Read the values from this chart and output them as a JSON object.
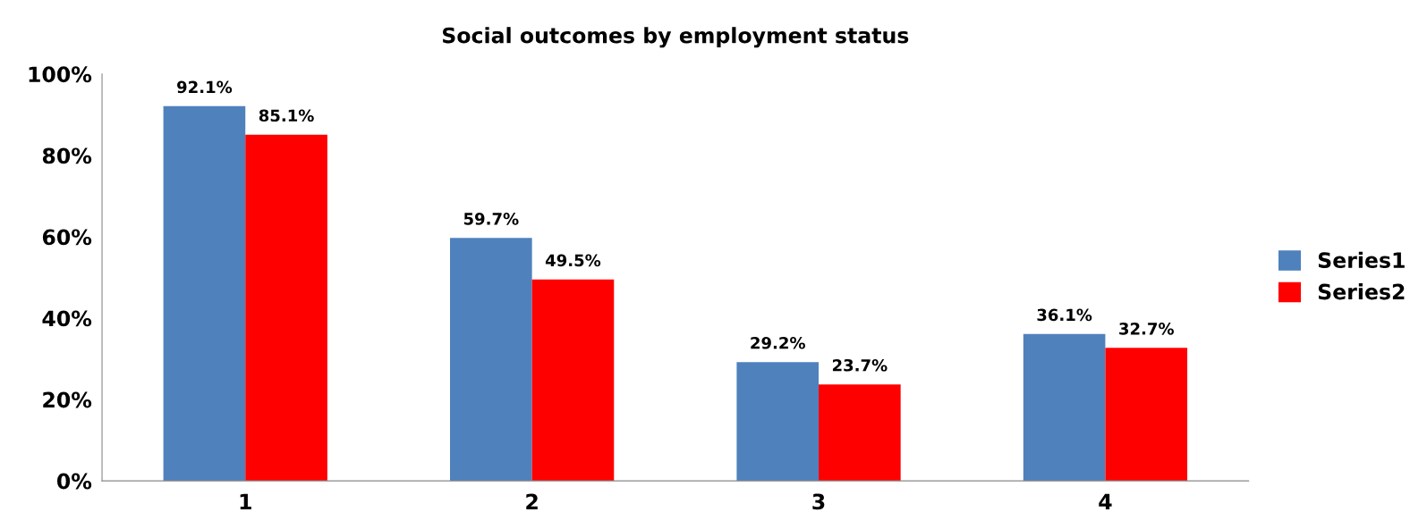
{
  "chart_data": {
    "type": "bar",
    "title": "Social outcomes by employment status",
    "categories": [
      "1",
      "2",
      "3",
      "4"
    ],
    "series": [
      {
        "name": "Series1",
        "color": "#4f81bd",
        "values": [
          92.1,
          59.7,
          29.2,
          36.1
        ],
        "value_labels": [
          "92.1%",
          "59.7%",
          "29.2%",
          "36.1%"
        ]
      },
      {
        "name": "Series2",
        "color": "#ff0000",
        "values": [
          85.1,
          49.5,
          23.7,
          32.7
        ],
        "value_labels": [
          "85.1%",
          "49.5%",
          "23.7%",
          "32.7%"
        ]
      }
    ],
    "ylim": [
      0,
      100
    ],
    "yticks": [
      {
        "value": 0,
        "label": "0%"
      },
      {
        "value": 20,
        "label": "20%"
      },
      {
        "value": 40,
        "label": "40%"
      },
      {
        "value": 60,
        "label": "60%"
      },
      {
        "value": 80,
        "label": "80%"
      },
      {
        "value": 100,
        "label": "100%"
      }
    ],
    "grid": false,
    "legend": "right"
  }
}
